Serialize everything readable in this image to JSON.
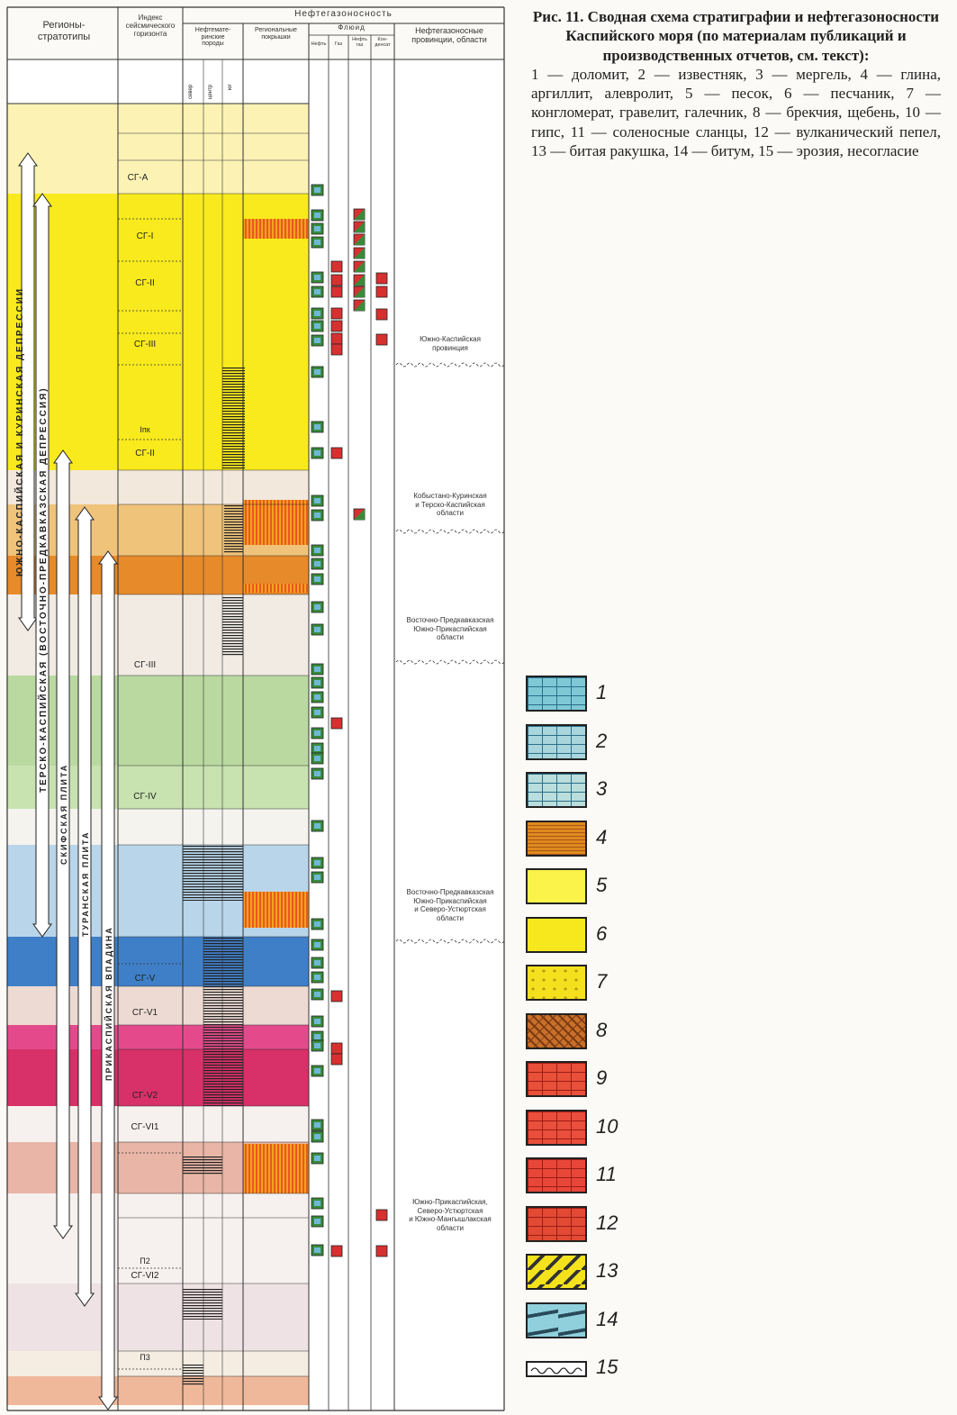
{
  "header": {
    "regions": "Регионы-\nстратотипы",
    "index": "Индекс\nсейсмического\nгоризонта",
    "oil_gas": "Нефтегазоносность",
    "source_rocks": "Нефтемате-\nринские\nпороды",
    "sub_north": "север",
    "sub_center": "центр",
    "sub_south": "юг",
    "seals": "Региональные\nпокрышки",
    "fluid": "Флюид",
    "fluid_oil": "Нефть",
    "fluid_gas": "Газ",
    "fluid_oilgas": "Нефть\nгаз",
    "fluid_cond": "Кон-\nденсат",
    "provinces": "Нефтегазоносные\nпровинции, области"
  },
  "regions": [
    {
      "label": "ЮЖНО-КАСПИЙСКАЯ И КУРИНСКАЯ ДЕПРЕССИИ"
    },
    {
      "label": "ТЕРСКО-КАСПИЙСКАЯ (ВОСТОЧНО-ПРЕДКАВКАЗСКАЯ ДЕПРЕССИЯ)"
    },
    {
      "label": "СКИФСКАЯ ПЛИТА"
    },
    {
      "label": "ТУРАНСКАЯ ПЛИТА"
    },
    {
      "label": "ПРИКАСПИЙСКАЯ ВПАДИНА"
    }
  ],
  "horizons": [
    {
      "label": "СГ-А"
    },
    {
      "label": "СГ-I"
    },
    {
      "label": "СГ-II"
    },
    {
      "label": "СГ-III"
    },
    {
      "label": "Iпк"
    },
    {
      "label": "СГ-II"
    },
    {
      "label": "СГ-III"
    },
    {
      "label": "СГ-IV"
    },
    {
      "label": "СГ-V"
    },
    {
      "label": "СГ-V1"
    },
    {
      "label": "СГ-V2"
    },
    {
      "label": "СГ-VI1"
    },
    {
      "label": "П2"
    },
    {
      "label": "СГ-VI2"
    },
    {
      "label": "П3"
    }
  ],
  "provinces": [
    {
      "label": "Южно-Каспийская\nпровинция"
    },
    {
      "label": "Кобыстано-Куринская\nи Терско-Каспийская\nобласти"
    },
    {
      "label": "Восточно-Предкавказская\nЮжно-Прикаспийская\nобласти"
    },
    {
      "label": "Восточно-Предкавказская\nЮжно-Прикаспийская\nи Северо-Устюртская\nобласти"
    },
    {
      "label": "Южно-Прикаспийская,\nСеверо-Устюртская\nи Южно-Мангышлакская\nобласти"
    }
  ],
  "caption": {
    "title": "Рис. 11. Сводная схема стратиграфии и нефтегазоносности Каспийского моря (по материалам публикаций и производственных отчетов, см. текст):",
    "body": "1 — доломит, 2 — известняк, 3 — мергель, 4 — глина, аргиллит, алевролит, 5 — песок, 6 — песчаник, 7 — конгломерат, гравелит, галечник, 8 — брекчия, щебень, 10 — гипс, 11 — соленосные сланцы, 12 — вулканический пепел, 13 — битая ракушка, 14 — битум, 15 — эрозия, несогласие"
  },
  "legend": [
    {
      "num": "1",
      "name": "dolomite",
      "color": "#7fc8d6"
    },
    {
      "num": "2",
      "name": "limestone",
      "color": "#a9d6dc"
    },
    {
      "num": "3",
      "name": "marl",
      "color": "#b9dedc"
    },
    {
      "num": "4",
      "name": "clay",
      "color": "#e08a1e"
    },
    {
      "num": "5",
      "name": "sand",
      "color": "#fbf24a"
    },
    {
      "num": "6",
      "name": "sandstone",
      "color": "#f6e81c"
    },
    {
      "num": "7",
      "name": "conglomerate",
      "color": "#f5e01e"
    },
    {
      "num": "8",
      "name": "breccia",
      "color": "#c8702a"
    },
    {
      "num": "9",
      "name": "pattern-9",
      "color": "#e8503a"
    },
    {
      "num": "10",
      "name": "gypsum",
      "color": "#ea4e3c"
    },
    {
      "num": "11",
      "name": "salt-shale",
      "color": "#e9463a"
    },
    {
      "num": "12",
      "name": "volcanic-ash",
      "color": "#e24a34"
    },
    {
      "num": "13",
      "name": "shell-debris",
      "color": "#f4e21c"
    },
    {
      "num": "14",
      "name": "bitumen",
      "color": "#8fd0dc"
    },
    {
      "num": "15",
      "name": "erosion",
      "color": "#ffffff"
    }
  ]
}
